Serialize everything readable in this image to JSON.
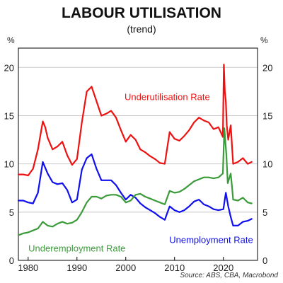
{
  "chart_data": {
    "type": "line",
    "title": "LABOUR UTILISATION",
    "subtitle": "(trend)",
    "y_unit_left": "%",
    "y_unit_right": "%",
    "source": "Source: ABS, CBA, Macrobond",
    "xlim": [
      1978,
      2027
    ],
    "ylim": [
      0,
      22
    ],
    "x_ticks": [
      1980,
      1990,
      2000,
      2010,
      2020
    ],
    "x_tick_labels": [
      "1980",
      "1990",
      "2000",
      "2010",
      "2020"
    ],
    "y_ticks": [
      0,
      5,
      10,
      15,
      20
    ],
    "y_tick_labels": [
      "0",
      "5",
      "10",
      "15",
      "20"
    ],
    "grid": true,
    "legend": "inline labels",
    "series": [
      {
        "name": "Underutilisation Rate",
        "color": "#ee1111",
        "x": [
          1978,
          1979,
          1980,
          1981,
          1982,
          1983,
          1983.5,
          1984,
          1985,
          1986,
          1987,
          1988,
          1989,
          1990,
          1991,
          1992,
          1993,
          1994,
          1995,
          1996,
          1997,
          1998,
          1999,
          2000,
          2001,
          2002,
          2003,
          2004,
          2005,
          2006,
          2007,
          2008,
          2009,
          2010,
          2011,
          2012,
          2013,
          2014,
          2015,
          2016,
          2017,
          2018,
          2019,
          2019.9,
          2020.1,
          2020.3,
          2020.5,
          2020.7,
          2021,
          2021.5,
          2022,
          2023,
          2024,
          2025,
          2025.8
        ],
        "values": [
          8.9,
          8.9,
          8.8,
          9.5,
          11.5,
          14.4,
          13.8,
          12.7,
          11.5,
          11.8,
          12.3,
          10.9,
          9.9,
          10.5,
          14.3,
          17.5,
          18.0,
          16.5,
          15.0,
          15.2,
          15.5,
          14.8,
          13.5,
          12.3,
          13.0,
          12.5,
          11.5,
          11.2,
          10.8,
          10.5,
          10.1,
          10.0,
          13.3,
          12.6,
          12.4,
          12.9,
          13.5,
          14.3,
          14.8,
          14.5,
          14.3,
          13.6,
          13.8,
          12.8,
          20.3,
          17.5,
          16.5,
          14.0,
          12.5,
          14.0,
          10.0,
          10.2,
          10.6,
          10.0,
          10.2
        ]
      },
      {
        "name": "Unemployment Rate",
        "color": "#1010ee",
        "x": [
          1978,
          1979,
          1980,
          1981,
          1982,
          1983,
          1984,
          1985,
          1986,
          1987,
          1988,
          1989,
          1990,
          1991,
          1992,
          1993,
          1994,
          1995,
          1996,
          1997,
          1998,
          1999,
          2000,
          2001,
          2002,
          2003,
          2004,
          2005,
          2006,
          2007,
          2008,
          2009,
          2010,
          2011,
          2012,
          2013,
          2014,
          2015,
          2016,
          2017,
          2018,
          2019,
          2020,
          2020.5,
          2021,
          2021.5,
          2022,
          2023,
          2024,
          2025,
          2025.8
        ],
        "values": [
          6.2,
          6.2,
          6.0,
          5.9,
          7.0,
          10.2,
          9.0,
          8.1,
          7.9,
          8.0,
          7.3,
          6.0,
          6.3,
          9.4,
          10.6,
          11.0,
          9.5,
          8.3,
          8.3,
          8.3,
          7.8,
          7.0,
          6.3,
          6.8,
          6.5,
          5.9,
          5.5,
          5.2,
          4.9,
          4.5,
          4.2,
          5.6,
          5.2,
          5.0,
          5.2,
          5.6,
          6.1,
          6.3,
          5.8,
          5.6,
          5.3,
          5.2,
          5.3,
          7.0,
          5.6,
          4.5,
          3.6,
          3.6,
          4.0,
          4.1,
          4.3
        ]
      },
      {
        "name": "Underemployment Rate",
        "color": "#3b9b3b",
        "x": [
          1978,
          1979,
          1980,
          1981,
          1982,
          1983,
          1984,
          1985,
          1986,
          1987,
          1988,
          1989,
          1990,
          1991,
          1992,
          1993,
          1994,
          1995,
          1996,
          1997,
          1998,
          1999,
          2000,
          2001,
          2002,
          2003,
          2004,
          2005,
          2006,
          2007,
          2008,
          2009,
          2010,
          2011,
          2012,
          2013,
          2014,
          2015,
          2016,
          2017,
          2018,
          2019,
          2019.9,
          2020.2,
          2020.6,
          2020.9,
          2021.2,
          2021.5,
          2021.8,
          2022,
          2023,
          2024,
          2025,
          2025.8
        ],
        "values": [
          2.6,
          2.8,
          2.9,
          3.1,
          3.3,
          4.0,
          3.6,
          3.5,
          3.8,
          4.0,
          3.8,
          3.9,
          4.2,
          5.0,
          6.0,
          6.6,
          6.6,
          6.4,
          6.7,
          6.8,
          6.8,
          6.6,
          6.0,
          6.2,
          6.8,
          6.9,
          6.6,
          6.4,
          6.2,
          6.0,
          5.8,
          7.2,
          7.0,
          7.1,
          7.4,
          7.8,
          8.2,
          8.4,
          8.6,
          8.6,
          8.5,
          8.6,
          9.0,
          13.7,
          11.0,
          8.0,
          8.5,
          9.0,
          7.5,
          6.3,
          6.2,
          6.5,
          6.0,
          5.9
        ]
      }
    ],
    "annotations": [
      {
        "text": "Underutilisation Rate",
        "series": "Underutilisation Rate",
        "x": 2008.5,
        "y": 16.6,
        "anchor": "middle"
      },
      {
        "text": "Unemployment Rate",
        "series": "Unemployment Rate",
        "x": 2017.5,
        "y": 1.8,
        "anchor": "middle"
      },
      {
        "text": "Underemployment Rate",
        "series": "Underemployment Rate",
        "x": 1990,
        "y": 0.9,
        "anchor": "middle"
      }
    ]
  }
}
